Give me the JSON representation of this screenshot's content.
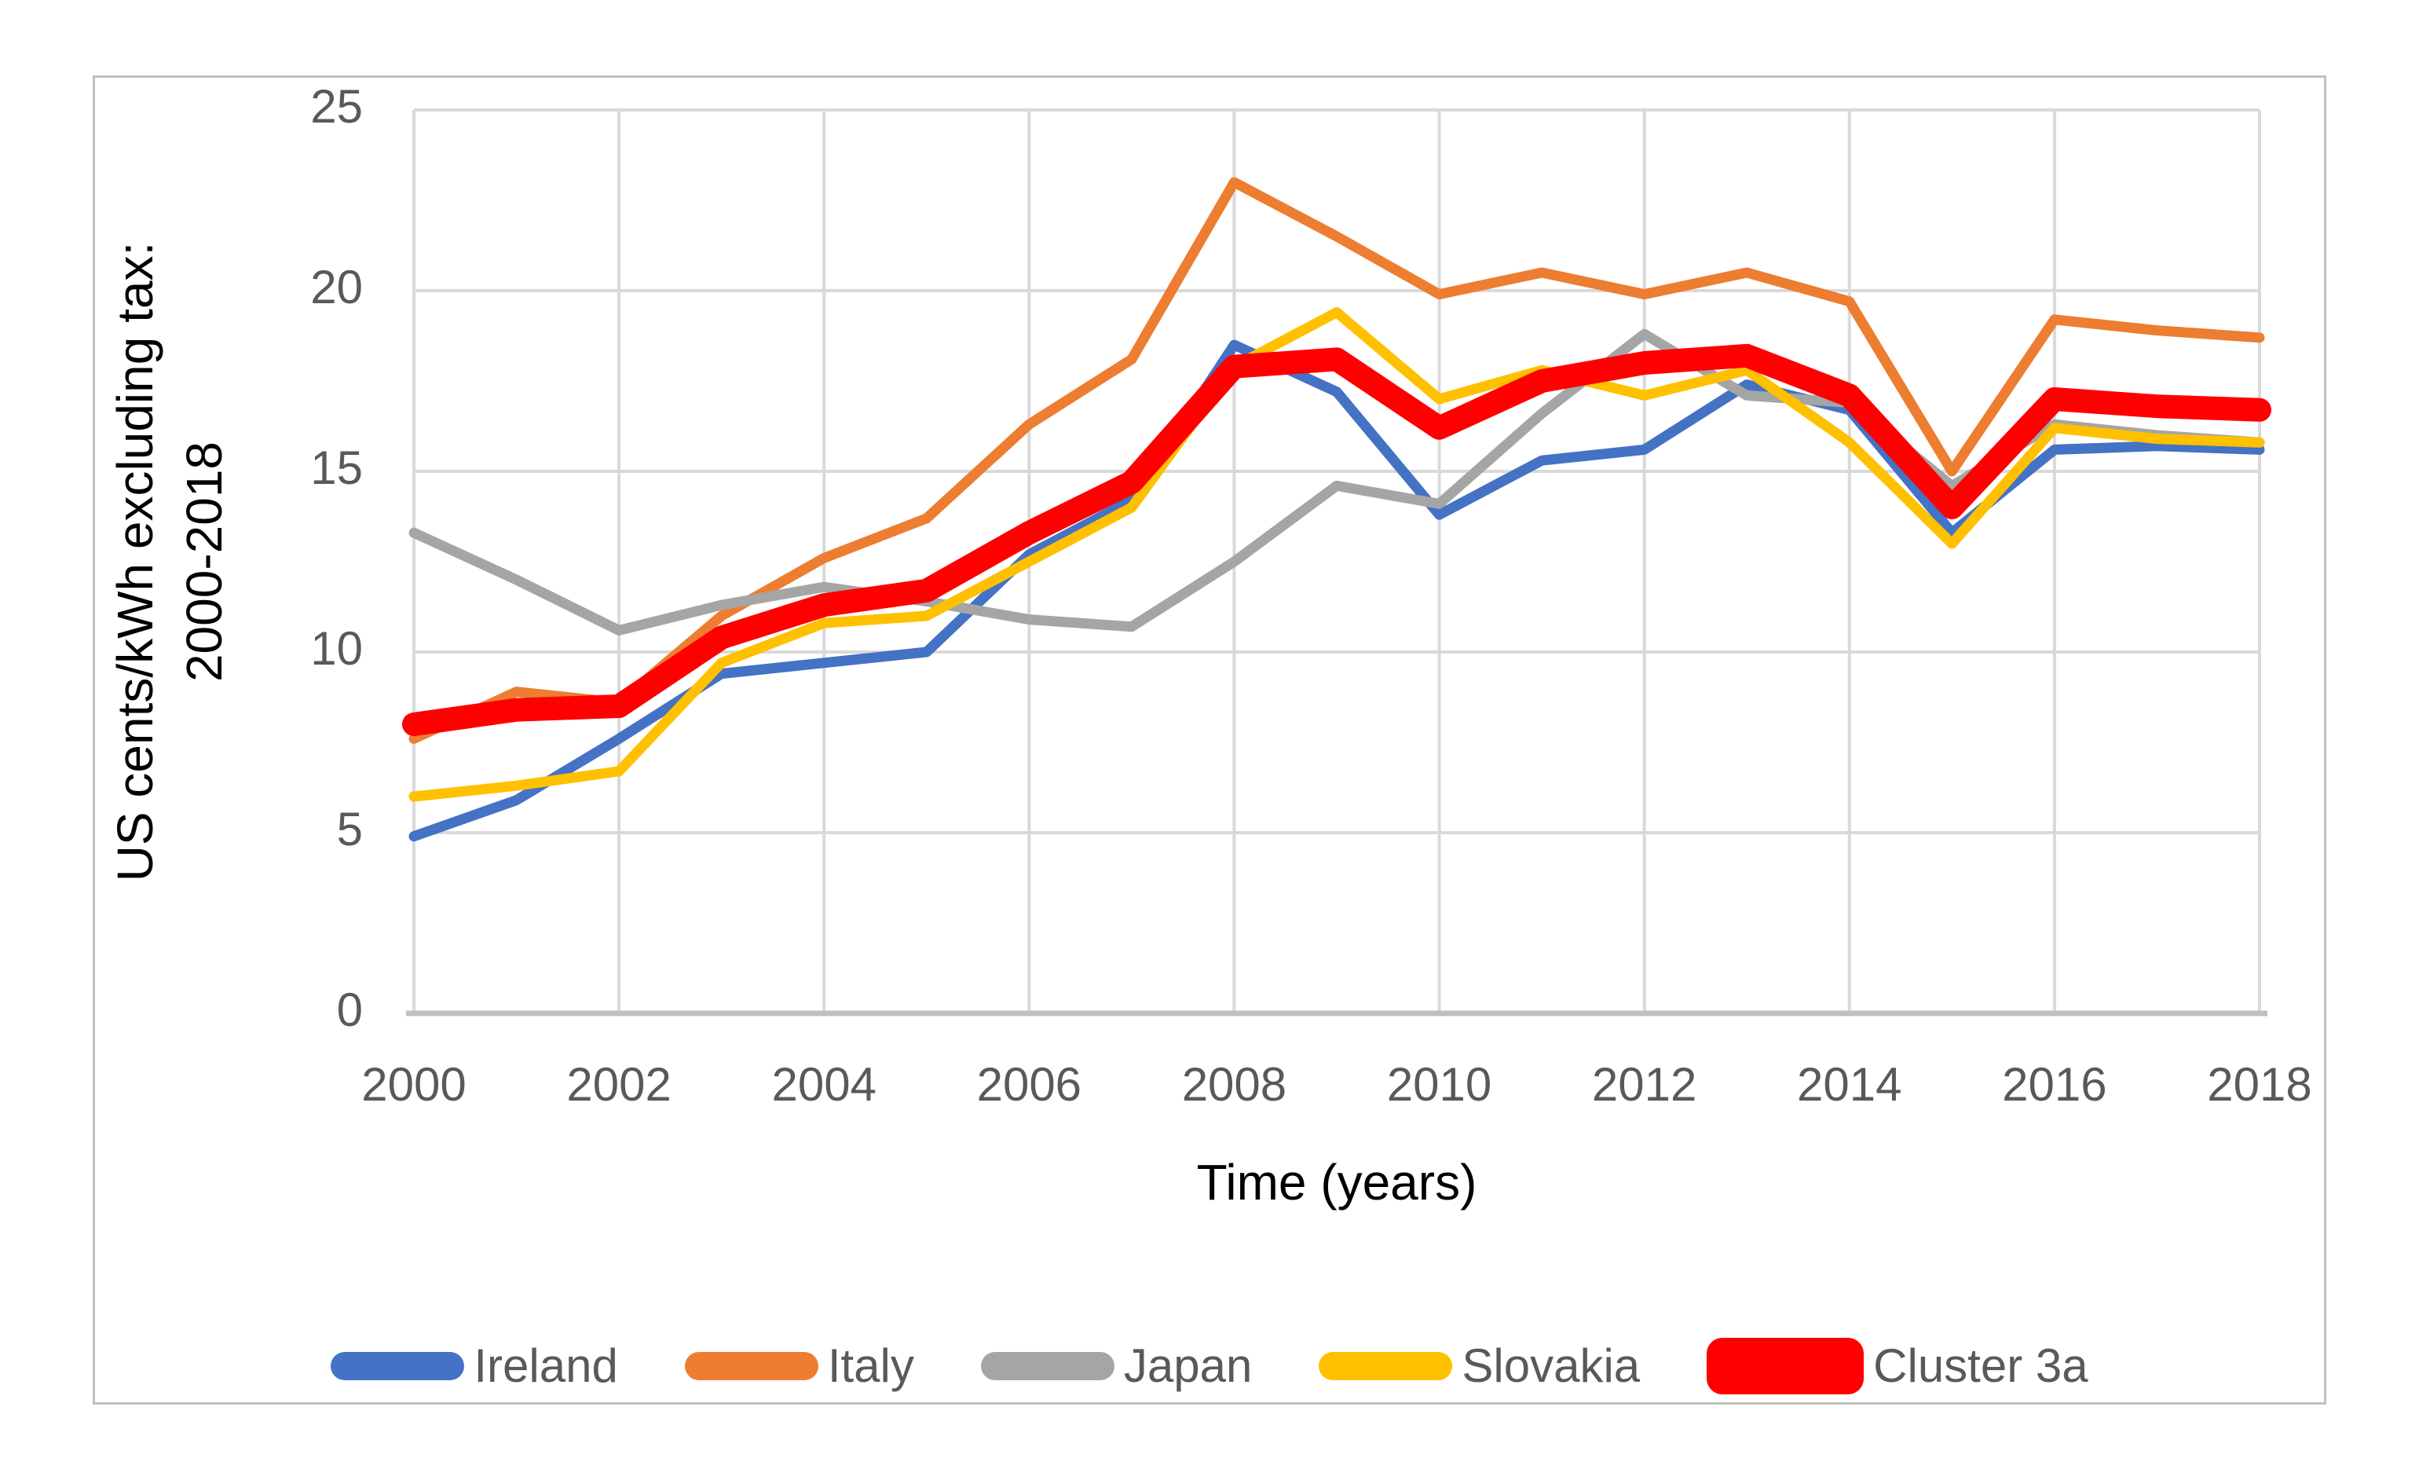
{
  "chart_data": {
    "type": "line",
    "title": "",
    "xlabel": "Time (years)",
    "ylabel_line1": "US cents/kWh  excluding tax:",
    "ylabel_line2": "2000-2018",
    "x": [
      2000,
      2001,
      2002,
      2003,
      2004,
      2005,
      2006,
      2007,
      2008,
      2009,
      2010,
      2011,
      2012,
      2013,
      2014,
      2015,
      2016,
      2017,
      2018
    ],
    "xlim": [
      2000,
      2018
    ],
    "ylim": [
      0,
      25
    ],
    "ytick_step": 5,
    "xtick_step": 2,
    "grid": true,
    "legend_position": "bottom",
    "series": [
      {
        "name": "Ireland",
        "color": "#4472C4",
        "thick": false,
        "values": [
          4.9,
          5.9,
          7.6,
          9.4,
          9.7,
          10.0,
          12.7,
          14.2,
          18.5,
          17.2,
          13.8,
          15.3,
          15.6,
          17.4,
          16.7,
          13.3,
          15.6,
          15.7,
          15.6
        ]
      },
      {
        "name": "Italy",
        "color": "#ED7D31",
        "thick": false,
        "values": [
          7.6,
          8.9,
          8.6,
          11.0,
          12.6,
          13.7,
          16.3,
          18.1,
          23.0,
          21.5,
          19.9,
          20.5,
          19.9,
          20.5,
          19.7,
          15.0,
          19.2,
          18.9,
          18.7
        ]
      },
      {
        "name": "Japan",
        "color": "#A5A5A5",
        "thick": false,
        "values": [
          13.3,
          12.0,
          10.6,
          11.3,
          11.8,
          11.4,
          10.9,
          10.7,
          12.5,
          14.6,
          14.1,
          16.6,
          18.8,
          17.1,
          16.9,
          14.6,
          16.3,
          16.0,
          15.8
        ]
      },
      {
        "name": "Slovakia",
        "color": "#FFC000",
        "thick": false,
        "values": [
          6.0,
          6.3,
          6.7,
          9.7,
          10.8,
          11.0,
          12.5,
          14.0,
          17.9,
          19.4,
          17.0,
          17.8,
          17.1,
          17.8,
          15.8,
          13.0,
          16.2,
          15.9,
          15.8
        ]
      },
      {
        "name": "Cluster 3a",
        "color": "#FF0000",
        "thick": true,
        "values": [
          8.0,
          8.4,
          8.5,
          10.4,
          11.3,
          11.7,
          13.3,
          14.7,
          17.9,
          18.1,
          16.2,
          17.5,
          18.0,
          18.2,
          17.1,
          14.0,
          17.0,
          16.8,
          16.7
        ]
      }
    ]
  },
  "axis": {
    "y_tick_labels": [
      "0",
      "5",
      "10",
      "15",
      "20",
      "25"
    ],
    "x_tick_labels": [
      "2000",
      "2002",
      "2004",
      "2006",
      "2008",
      "2010",
      "2012",
      "2014",
      "2016",
      "2018"
    ]
  },
  "legend": {
    "items": [
      {
        "label": "Ireland",
        "color": "#4472C4",
        "thick": false
      },
      {
        "label": "Italy",
        "color": "#ED7D31",
        "thick": false
      },
      {
        "label": "Japan",
        "color": "#A5A5A5",
        "thick": false
      },
      {
        "label": "Slovakia",
        "color": "#FFC000",
        "thick": false
      },
      {
        "label": "Cluster 3a",
        "color": "#FF0000",
        "thick": true
      }
    ]
  },
  "colors": {
    "gridline": "#D9D9D9",
    "axis_line": "#BFBFBF",
    "tick_text": "#595959",
    "title_text": "#000000",
    "figure_border": "#BFBFBF",
    "background": "#FFFFFF"
  }
}
